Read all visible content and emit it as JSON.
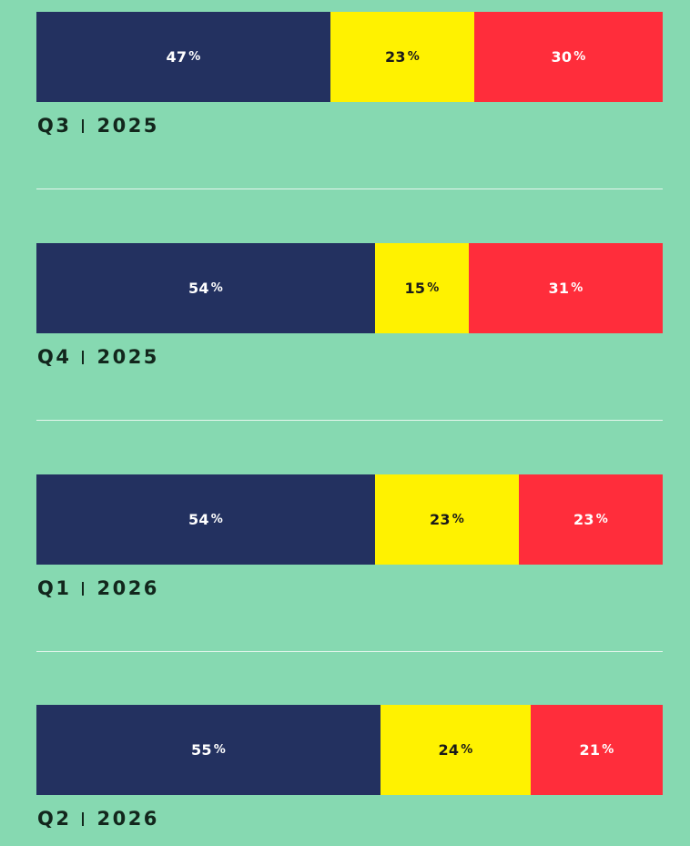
{
  "colors": {
    "background": "#86d9b1",
    "navy": "#233160",
    "yellow": "#fff200",
    "red": "#ff2d3b",
    "label_text": "#12261c"
  },
  "chart_data": {
    "type": "bar",
    "orientation": "horizontal",
    "stacked": true,
    "percent_unit": "%",
    "categories": [
      "Q3 | 2025",
      "Q4 | 2025",
      "Q1 | 2026",
      "Q2 | 2026"
    ],
    "periods": [
      {
        "quarter": "Q3",
        "year": "2025",
        "values": [
          47,
          23,
          30
        ]
      },
      {
        "quarter": "Q4",
        "year": "2025",
        "values": [
          54,
          15,
          31
        ]
      },
      {
        "quarter": "Q1",
        "year": "2026",
        "values": [
          54,
          23,
          23
        ]
      },
      {
        "quarter": "Q2",
        "year": "2026",
        "values": [
          55,
          24,
          21
        ]
      }
    ],
    "series_colors": [
      "#233160",
      "#fff200",
      "#ff2d3b"
    ],
    "series_text_colors": [
      "#ffffff",
      "#1a1a1a",
      "#ffffff"
    ],
    "grid": false,
    "legend": "none"
  }
}
